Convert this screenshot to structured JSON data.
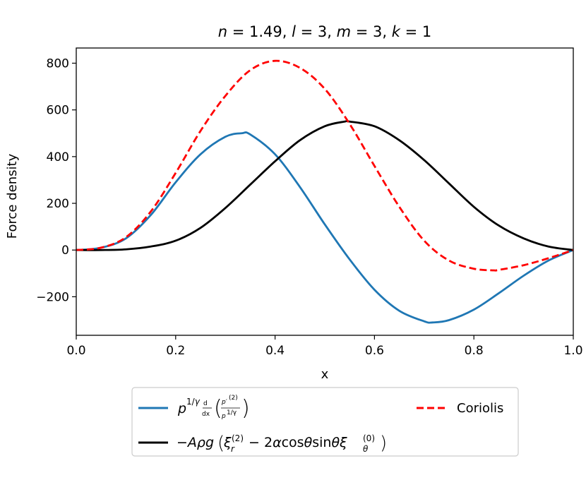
{
  "chart_data": {
    "type": "line",
    "title": "n = 1.49, l = 3, m = 3, k = 1",
    "title_parts": {
      "n": "n",
      "n_val": "1.49",
      "l": "l",
      "l_val": "3",
      "m": "m",
      "m_val": "3",
      "k": "k",
      "k_val": "1"
    },
    "xlabel": "x",
    "ylabel": "Force density",
    "xlim": [
      0.0,
      1.0
    ],
    "ylim": [
      -365,
      865
    ],
    "xticks": [
      0.0,
      0.2,
      0.4,
      0.6,
      0.8,
      1.0
    ],
    "xtick_labels": [
      "0.0",
      "0.2",
      "0.4",
      "0.6",
      "0.8",
      "1.0"
    ],
    "yticks": [
      -200,
      0,
      200,
      400,
      600,
      800
    ],
    "ytick_labels": [
      "−200",
      "0",
      "200",
      "400",
      "600",
      "800"
    ],
    "legend_position": "below",
    "series": [
      {
        "name": "p^{1/γ} d/dx (p'^{(2)} / p^{1/γ})",
        "color": "#1f77b4",
        "style": "solid",
        "x": [
          0.0,
          0.05,
          0.1,
          0.15,
          0.2,
          0.25,
          0.3,
          0.333,
          0.35,
          0.4,
          0.45,
          0.5,
          0.55,
          0.6,
          0.65,
          0.7,
          0.717,
          0.75,
          0.8,
          0.85,
          0.9,
          0.95,
          1.0
        ],
        "values": [
          0,
          10,
          50,
          150,
          290,
          410,
          485,
          500,
          495,
          410,
          270,
          110,
          -40,
          -170,
          -260,
          -305,
          -310,
          -300,
          -255,
          -185,
          -110,
          -45,
          0
        ]
      },
      {
        "name": "−Aρg(ξ_r^{(2)} − 2α cosθ sinθ ξ_θ^{(0)})",
        "color": "#000000",
        "style": "solid",
        "x": [
          0.0,
          0.05,
          0.1,
          0.15,
          0.2,
          0.25,
          0.3,
          0.35,
          0.4,
          0.45,
          0.5,
          0.54,
          0.55,
          0.6,
          0.65,
          0.7,
          0.75,
          0.8,
          0.85,
          0.9,
          0.95,
          1.0
        ],
        "values": [
          0,
          0,
          3,
          15,
          40,
          95,
          180,
          280,
          380,
          470,
          530,
          550,
          550,
          530,
          470,
          385,
          285,
          185,
          105,
          50,
          15,
          0
        ]
      },
      {
        "name": "Coriolis",
        "color": "#ff0000",
        "style": "dashed",
        "x": [
          0.0,
          0.05,
          0.1,
          0.15,
          0.2,
          0.25,
          0.3,
          0.35,
          0.4,
          0.45,
          0.5,
          0.55,
          0.6,
          0.65,
          0.7,
          0.75,
          0.8,
          0.84,
          0.85,
          0.9,
          0.95,
          1.0
        ],
        "values": [
          0,
          10,
          55,
          165,
          330,
          510,
          660,
          770,
          810,
          780,
          690,
          540,
          360,
          185,
          40,
          -45,
          -80,
          -87,
          -85,
          -65,
          -35,
          0
        ]
      }
    ]
  }
}
